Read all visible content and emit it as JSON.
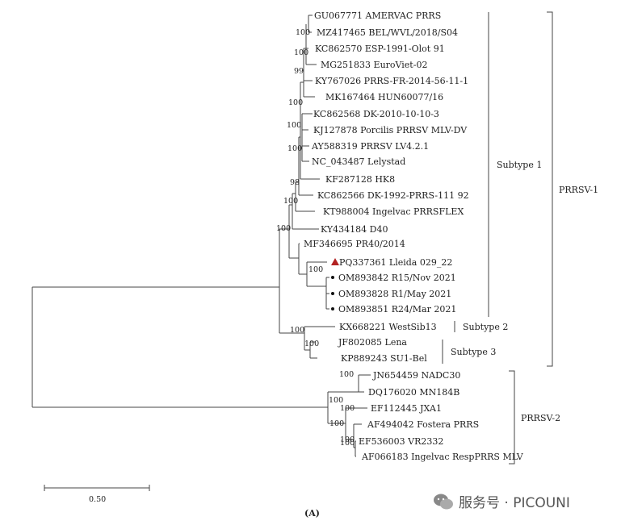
{
  "tree": {
    "taxa": [
      {
        "label": "GU067771 AMERVAC PRRS",
        "highlight": false,
        "dot": false
      },
      {
        "label": "MZ417465 BEL/WVL/2018/S04",
        "highlight": false,
        "dot": false
      },
      {
        "label": "KC862570 ESP-1991-Olot 91",
        "highlight": false,
        "dot": false
      },
      {
        "label": "MG251833 EuroViet-02",
        "highlight": false,
        "dot": false
      },
      {
        "label": "KY767026 PRRS-FR-2014-56-11-1",
        "highlight": false,
        "dot": false
      },
      {
        "label": "MK167464 HUN60077/16",
        "highlight": false,
        "dot": false
      },
      {
        "label": "KC862568 DK-2010-10-10-3",
        "highlight": false,
        "dot": false
      },
      {
        "label": "KJ127878 Porcilis PRRSV MLV-DV",
        "highlight": false,
        "dot": false
      },
      {
        "label": "AY588319 PRRSV LV4.2.1",
        "highlight": false,
        "dot": false
      },
      {
        "label": "NC_043487 Lelystad",
        "highlight": false,
        "dot": false
      },
      {
        "label": "KF287128 HK8",
        "highlight": false,
        "dot": false
      },
      {
        "label": "KC862566 DK-1992-PRRS-111 92",
        "highlight": false,
        "dot": false
      },
      {
        "label": "KT988004 Ingelvac PRRSFLEX",
        "highlight": false,
        "dot": false
      },
      {
        "label": "KY434184 D40",
        "highlight": false,
        "dot": false
      },
      {
        "label": "MF346695 PR40/2014",
        "highlight": false,
        "dot": false
      },
      {
        "label": "PQ337361 Lleida 029_22",
        "highlight": true,
        "dot": false
      },
      {
        "label": "OM893842 R15/Nov 2021",
        "highlight": false,
        "dot": true
      },
      {
        "label": "OM893828 R1/May 2021",
        "highlight": false,
        "dot": true
      },
      {
        "label": "OM893851 R24/Mar 2021",
        "highlight": false,
        "dot": true
      },
      {
        "label": "KX668221 WestSib13",
        "highlight": false,
        "dot": false
      },
      {
        "label": "JF802085 Lena",
        "highlight": false,
        "dot": false
      },
      {
        "label": "KP889243 SU1-Bel",
        "highlight": false,
        "dot": false
      },
      {
        "label": "JN654459 NADC30",
        "highlight": false,
        "dot": false
      },
      {
        "label": "DQ176020 MN184B",
        "highlight": false,
        "dot": false
      },
      {
        "label": "EF112445 JXA1",
        "highlight": false,
        "dot": false
      },
      {
        "label": "AF494042 Fostera PRRS",
        "highlight": false,
        "dot": false
      },
      {
        "label": "EF536003 VR2332",
        "highlight": false,
        "dot": false
      },
      {
        "label": "AF066183 Ingelvac RespPRRS MLV",
        "highlight": false,
        "dot": false
      }
    ],
    "bootstrap": [
      "100",
      "100",
      "99",
      "100",
      "100",
      "100",
      "98",
      "100",
      "100",
      "100",
      "100",
      "100",
      "100",
      "100",
      "100",
      "100",
      "100",
      "100"
    ],
    "groups": {
      "subtype1": "Subtype 1",
      "subtype2": "Subtype 2",
      "subtype3": "Subtype 3",
      "prrsv1": "PRRSV-1",
      "prrsv2": "PRRSV-2"
    },
    "scale_label": "0.50",
    "panel_label": "(A)",
    "highlight_color": "#b22222"
  },
  "watermark": {
    "text": "服务号 · PICOUNI"
  }
}
